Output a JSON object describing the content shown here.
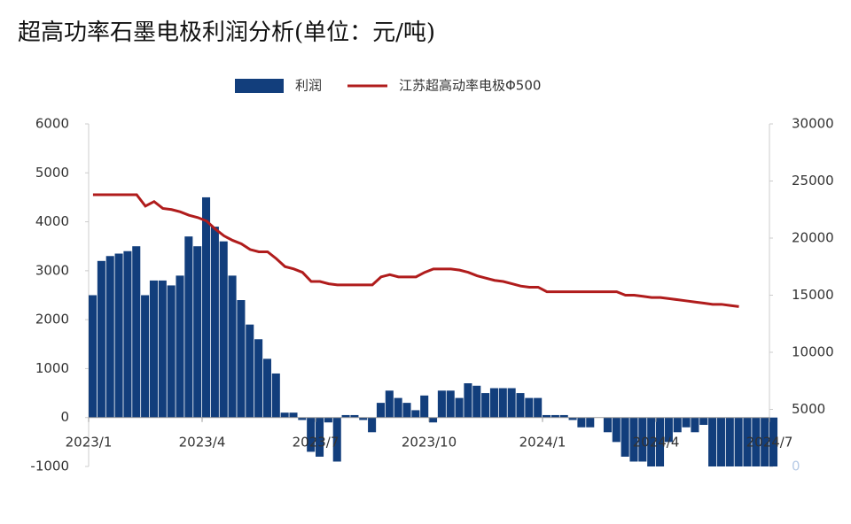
{
  "chart_data": {
    "type": "bar-line",
    "title": "超高功率石墨电极利润分析(单位：元/吨)",
    "categories": [
      "2023/1",
      null,
      null,
      null,
      null,
      null,
      null,
      null,
      null,
      null,
      null,
      null,
      null,
      "2023/4",
      null,
      null,
      null,
      null,
      null,
      null,
      null,
      null,
      null,
      null,
      null,
      null,
      "2023/7",
      null,
      null,
      null,
      null,
      null,
      null,
      null,
      null,
      null,
      null,
      null,
      null,
      "2023/10",
      null,
      null,
      null,
      null,
      null,
      null,
      null,
      null,
      null,
      null,
      null,
      null,
      "2024/1",
      null,
      null,
      null,
      null,
      null,
      null,
      null,
      null,
      null,
      null,
      null,
      null,
      "2024/4",
      null,
      null,
      null,
      null,
      null,
      null,
      null,
      null,
      null,
      null,
      null,
      null,
      "2024/7"
    ],
    "series": [
      {
        "name": "利润",
        "type": "bar",
        "color": "#123e7c",
        "values": [
          2500,
          3200,
          3300,
          3350,
          3400,
          3500,
          2500,
          2800,
          2800,
          2700,
          2900,
          3700,
          3500,
          4500,
          3900,
          3600,
          2900,
          2400,
          1900,
          1600,
          1200,
          900,
          100,
          100,
          -50,
          -700,
          -800,
          -100,
          -900,
          50,
          50,
          -50,
          -300,
          300,
          550,
          400,
          300,
          150,
          450,
          -100,
          550,
          550,
          400,
          700,
          650,
          500,
          600,
          600,
          600,
          500,
          400,
          400,
          50,
          50,
          50,
          -50,
          -200,
          -200,
          0,
          -300,
          -500,
          -800,
          -900,
          -900,
          -1000,
          -1000,
          -500,
          -300,
          -200,
          -300,
          -150,
          -1000,
          -1000,
          -1000,
          -1000,
          -1000,
          -1000,
          -1000,
          -1000
        ]
      },
      {
        "name": "江苏超高动率电极Φ500",
        "type": "line",
        "axis": "y2",
        "color": "#b01c1c",
        "values": [
          23800,
          23800,
          23800,
          23800,
          23800,
          23800,
          22800,
          23200,
          22600,
          22500,
          22300,
          22000,
          21800,
          21500,
          20800,
          20200,
          19800,
          19500,
          19000,
          18800,
          18800,
          18200,
          17500,
          17300,
          17000,
          16200,
          16200,
          16000,
          15900,
          15900,
          15900,
          15900,
          15900,
          16600,
          16800,
          16600,
          16600,
          16600,
          17000,
          17300,
          17300,
          17300,
          17200,
          17000,
          16700,
          16500,
          16300,
          16200,
          16000,
          15800,
          15700,
          15700,
          15300,
          15300,
          15300,
          15300,
          15300,
          15300,
          15300,
          15300,
          15300,
          15000,
          15000,
          14900,
          14800,
          14800,
          14700,
          14600,
          14500,
          14400,
          14300,
          14200,
          14200,
          14100,
          14000,
          null,
          null,
          null,
          null
        ]
      }
    ],
    "ylim": [
      -1000,
      6000
    ],
    "yticks": [
      -1000,
      0,
      1000,
      2000,
      3000,
      4000,
      5000,
      6000
    ],
    "y2lim": [
      0,
      30000
    ],
    "y2ticks": [
      0,
      5000,
      10000,
      15000,
      20000,
      25000,
      30000
    ]
  }
}
